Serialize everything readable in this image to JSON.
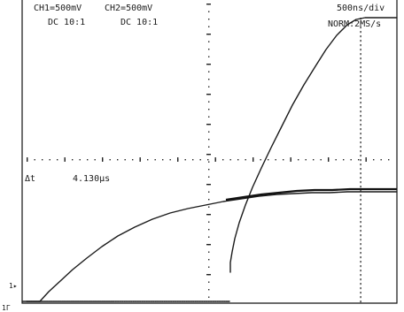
{
  "readout": {
    "ch1": "CH1=500mV",
    "ch1_coupling": "DC  10:1",
    "ch2": "CH2=500mV",
    "ch2_coupling": "DC  10:1",
    "timebase": "500ns/div",
    "trigger_mode": "NORM:2MS/s",
    "cursor_label": "Δt",
    "cursor_value": "4.130µs",
    "ch1_marker": "1▸",
    "ground_marker": "1Γ"
  },
  "colors": {
    "background": "#ffffff",
    "trace": "#1a1a1a",
    "graticule": "#222222"
  }
}
